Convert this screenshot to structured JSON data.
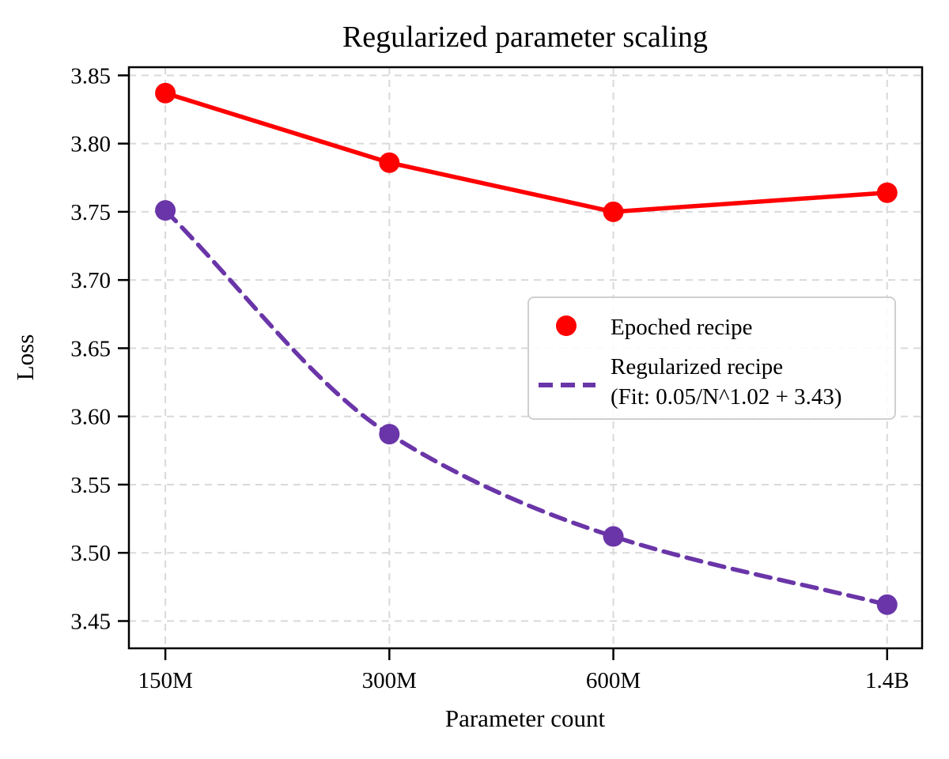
{
  "chart_data": {
    "type": "line",
    "title": "Regularized parameter scaling",
    "xlabel": "Parameter count",
    "ylabel": "Loss",
    "x_scale": "log",
    "grid": true,
    "legend_position": "center-right",
    "categories": [
      "150M",
      "300M",
      "600M",
      "1.4B"
    ],
    "x_values_billions": [
      0.15,
      0.3,
      0.6,
      1.4
    ],
    "xlim_billions": [
      0.134,
      1.56
    ],
    "ylim": [
      3.43,
      3.856
    ],
    "y_ticks": [
      3.45,
      3.5,
      3.55,
      3.6,
      3.65,
      3.7,
      3.75,
      3.8,
      3.85
    ],
    "series": [
      {
        "name": "Epoched recipe",
        "values": [
          3.837,
          3.786,
          3.75,
          3.764
        ],
        "color": "#ff0000",
        "line_style": "solid",
        "curve": "linear",
        "marker": "circle"
      },
      {
        "name": "Regularized recipe",
        "fit_label": "(Fit: 0.05/N^1.02 + 3.43)",
        "values": [
          3.751,
          3.587,
          3.512,
          3.462
        ],
        "color": "#6a35a8",
        "line_style": "dashed",
        "curve": "smooth",
        "marker": "circle"
      }
    ]
  }
}
